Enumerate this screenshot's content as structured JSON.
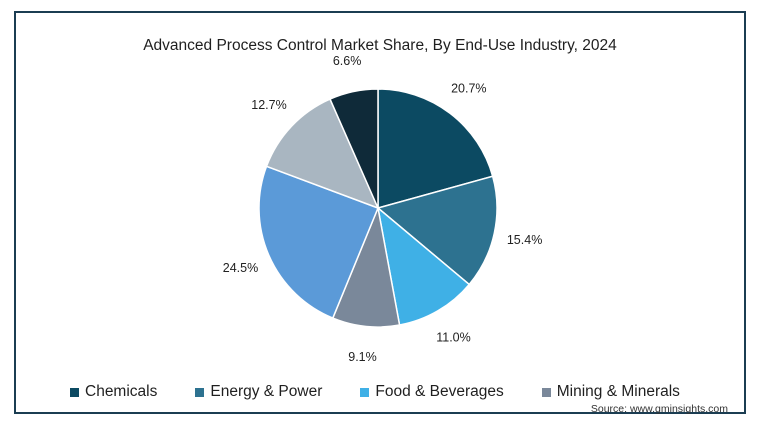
{
  "chart_data": {
    "type": "pie",
    "title": "Advanced Process Control Market Share, By End-Use Industry, 2024",
    "slices": [
      {
        "name": "Chemicals",
        "value": 20.7,
        "label": "20.7%",
        "color": "#0c4a62"
      },
      {
        "name": "Energy & Power",
        "value": 15.4,
        "label": "15.4%",
        "color": "#2d7290"
      },
      {
        "name": "Food & Beverages",
        "value": 11.0,
        "label": "11.0%",
        "color": "#3fb0e6"
      },
      {
        "name": "Mining & Minerals",
        "value": 9.1,
        "label": "9.1%",
        "color": "#7a889a"
      },
      {
        "name": "",
        "value": 24.5,
        "label": "24.5%",
        "color": "#5b9ad8"
      },
      {
        "name": "",
        "value": 12.7,
        "label": "12.7%",
        "color": "#a9b6c1"
      },
      {
        "name": "",
        "value": 6.6,
        "label": "6.6%",
        "color": "#0f2a39"
      }
    ],
    "legend": [
      "Chemicals",
      "Energy & Power",
      "Food & Beverages",
      "Mining & Minerals"
    ],
    "legend_position": "bottom",
    "source": "Source: www.gminsights.com"
  }
}
